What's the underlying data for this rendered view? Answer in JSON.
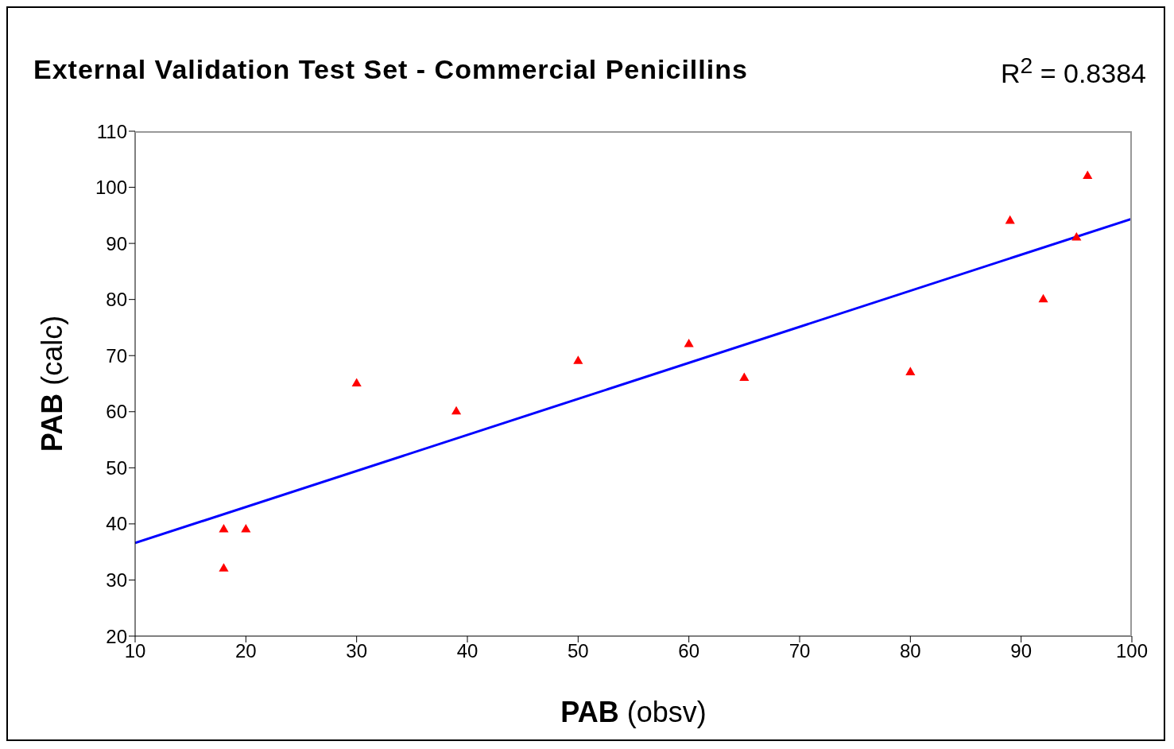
{
  "chart_data": {
    "type": "scatter",
    "title": "External Validation Test Set - Commercial Penicillins",
    "xlabel": "PAB (obsv)",
    "ylabel": "PAB (calc)",
    "annotations": [
      "R$^{2}$ = 0.8384"
    ],
    "x": [
      18,
      18,
      20,
      30,
      39,
      50,
      60,
      65,
      80,
      89,
      92,
      95,
      96
    ],
    "series": [
      {
        "marker": "triangle",
        "color": "#ff0000",
        "values": [
          39,
          32,
          39,
          65,
          60,
          69,
          72,
          66,
          67,
          94,
          80,
          91,
          102
        ]
      },
      {
        "type": "line",
        "marker": "none",
        "color": "#0000ff",
        "x": [
          10,
          100
        ],
        "values": [
          36.6,
          94.4
        ]
      }
    ],
    "xlim": [
      10,
      100
    ],
    "xticks": [
      10,
      20,
      30,
      40,
      50,
      60,
      70,
      80,
      90,
      100
    ],
    "ylim": [
      20,
      110
    ],
    "yticks": [
      20,
      30,
      40,
      50,
      60,
      70,
      80,
      90,
      100,
      110
    ],
    "grid": false,
    "legend": false,
    "line_style": "solid"
  }
}
